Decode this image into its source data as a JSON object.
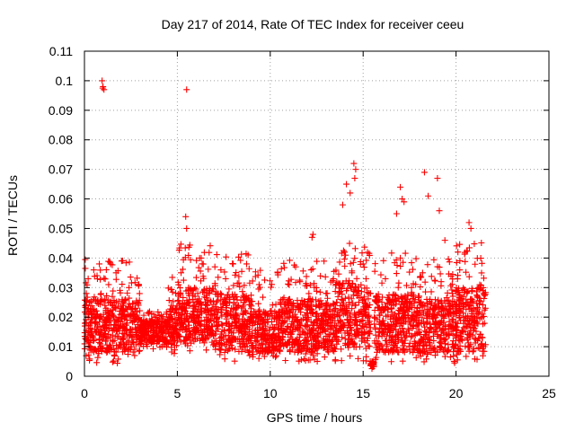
{
  "chart_data": {
    "type": "scatter",
    "title": "Day 217 of 2014, Rate Of TEC Index for receiver ceeu",
    "xlabel": "GPS time / hours",
    "ylabel": "ROTI / TECUs",
    "xlim": [
      0,
      25
    ],
    "ylim": [
      0,
      0.11
    ],
    "xticks": [
      0,
      5,
      10,
      15,
      20,
      25
    ],
    "xtick_labels": [
      "0",
      "5",
      "10",
      "15",
      "20",
      "25"
    ],
    "yticks": [
      0,
      0.01,
      0.02,
      0.03,
      0.04,
      0.05,
      0.06,
      0.07,
      0.08,
      0.09,
      0.1,
      0.11
    ],
    "ytick_labels": [
      "0",
      "0.01",
      "0.02",
      "0.03",
      "0.04",
      "0.05",
      "0.06",
      "0.07",
      "0.08",
      "0.09",
      "0.1",
      "0.11"
    ],
    "grid": true,
    "marker": "+",
    "color": "#ff0000",
    "series": [
      {
        "name": "ROTI",
        "x": [
          0.05,
          0.1,
          0.15,
          0.2,
          0.3,
          0.4,
          0.5,
          0.6,
          0.7,
          0.8,
          0.9,
          1.0,
          1.1,
          1.2,
          1.3,
          1.4,
          1.5,
          1.6,
          1.7,
          1.8,
          1.9,
          2.0,
          2.1,
          2.2,
          2.3,
          2.4,
          2.5,
          2.6,
          2.7,
          2.8,
          2.9,
          3.0,
          3.2,
          3.4,
          3.6,
          3.8,
          4.0,
          4.2,
          4.4,
          4.6,
          4.8,
          5.0,
          5.2,
          5.4,
          5.6,
          5.8,
          6.0,
          6.2,
          6.4,
          6.6,
          6.8,
          7.0,
          7.2,
          7.4,
          7.6,
          7.8,
          8.0,
          8.2,
          8.4,
          8.6,
          8.8,
          9.0,
          9.2,
          9.4,
          9.6,
          9.8,
          10.0,
          10.2,
          10.4,
          10.6,
          10.8,
          11.0,
          11.2,
          11.4,
          11.6,
          11.8,
          12.0,
          12.2,
          12.4,
          12.6,
          12.8,
          13.0,
          13.2,
          13.4,
          13.6,
          13.8,
          14.0,
          14.2,
          14.4,
          14.6,
          14.8,
          15.0,
          15.2,
          15.4,
          15.6,
          15.8,
          16.0,
          16.2,
          16.4,
          16.6,
          16.8,
          17.0,
          17.2,
          17.4,
          17.6,
          17.8,
          18.0,
          18.2,
          18.4,
          18.6,
          18.8,
          19.0,
          19.2,
          19.4,
          19.6,
          19.8,
          20.0,
          20.2,
          20.4,
          20.6,
          20.8,
          21.0,
          21.2,
          21.4,
          0.95,
          1.0,
          1.05,
          0.98,
          5.5,
          5.45,
          5.5,
          14.1,
          14.5,
          14.6,
          14.55,
          17.0,
          17.1,
          18.3,
          19.0,
          19.1,
          20.7,
          20.8,
          12.3,
          12.25,
          13.9,
          14.3,
          16.8,
          17.2,
          18.5,
          19.4
        ],
        "y": [
          0.018,
          0.028,
          0.012,
          0.033,
          0.022,
          0.015,
          0.036,
          0.009,
          0.021,
          0.038,
          0.014,
          0.017,
          0.024,
          0.008,
          0.031,
          0.019,
          0.027,
          0.012,
          0.035,
          0.016,
          0.022,
          0.039,
          0.011,
          0.026,
          0.018,
          0.03,
          0.014,
          0.021,
          0.007,
          0.025,
          0.019,
          0.013,
          0.016,
          0.018,
          0.012,
          0.02,
          0.014,
          0.017,
          0.011,
          0.022,
          0.015,
          0.018,
          0.035,
          0.012,
          0.028,
          0.021,
          0.016,
          0.04,
          0.013,
          0.024,
          0.019,
          0.011,
          0.027,
          0.015,
          0.033,
          0.012,
          0.038,
          0.018,
          0.01,
          0.025,
          0.014,
          0.02,
          0.012,
          0.031,
          0.016,
          0.009,
          0.022,
          0.014,
          0.035,
          0.018,
          0.011,
          0.026,
          0.015,
          0.02,
          0.032,
          0.012,
          0.017,
          0.036,
          0.013,
          0.024,
          0.019,
          0.028,
          0.011,
          0.033,
          0.021,
          0.016,
          0.042,
          0.018,
          0.03,
          0.024,
          0.015,
          0.038,
          0.012,
          0.028,
          0.02,
          0.009,
          0.016,
          0.033,
          0.012,
          0.025,
          0.018,
          0.04,
          0.014,
          0.022,
          0.03,
          0.011,
          0.019,
          0.035,
          0.015,
          0.026,
          0.012,
          0.021,
          0.032,
          0.017,
          0.009,
          0.028,
          0.014,
          0.036,
          0.02,
          0.013,
          0.024,
          0.018,
          0.03,
          0.011,
          0.1,
          0.098,
          0.097,
          0.0975,
          0.097,
          0.054,
          0.05,
          0.065,
          0.072,
          0.07,
          0.067,
          0.064,
          0.06,
          0.069,
          0.067,
          0.056,
          0.052,
          0.05,
          0.048,
          0.047,
          0.058,
          0.062,
          0.055,
          0.059,
          0.061,
          0.046
        ]
      }
    ],
    "bands": [
      {
        "x0": 0.0,
        "x1": 3.0,
        "lo": 0.004,
        "hi": 0.04,
        "dense_lo": 0.008,
        "dense_hi": 0.026
      },
      {
        "x0": 3.0,
        "x1": 4.5,
        "lo": 0.009,
        "hi": 0.022,
        "dense_lo": 0.011,
        "dense_hi": 0.019
      },
      {
        "x0": 4.5,
        "x1": 5.0,
        "lo": 0.007,
        "hi": 0.034,
        "dense_lo": 0.01,
        "dense_hi": 0.024
      },
      {
        "x0": 5.0,
        "x1": 7.0,
        "lo": 0.008,
        "hi": 0.045,
        "dense_lo": 0.012,
        "dense_hi": 0.03
      },
      {
        "x0": 7.0,
        "x1": 9.0,
        "lo": 0.005,
        "hi": 0.042,
        "dense_lo": 0.008,
        "dense_hi": 0.028
      },
      {
        "x0": 9.0,
        "x1": 10.5,
        "lo": 0.006,
        "hi": 0.036,
        "dense_lo": 0.008,
        "dense_hi": 0.022
      },
      {
        "x0": 10.5,
        "x1": 13.5,
        "lo": 0.005,
        "hi": 0.04,
        "dense_lo": 0.008,
        "dense_hi": 0.026
      },
      {
        "x0": 13.5,
        "x1": 15.4,
        "lo": 0.005,
        "hi": 0.045,
        "dense_lo": 0.01,
        "dense_hi": 0.032
      },
      {
        "x0": 15.4,
        "x1": 15.6,
        "lo": 0.002,
        "hi": 0.006,
        "dense_lo": 0.003,
        "dense_hi": 0.005
      },
      {
        "x0": 15.6,
        "x1": 18.0,
        "lo": 0.004,
        "hi": 0.042,
        "dense_lo": 0.008,
        "dense_hi": 0.028
      },
      {
        "x0": 18.0,
        "x1": 20.0,
        "lo": 0.004,
        "hi": 0.04,
        "dense_lo": 0.008,
        "dense_hi": 0.026
      },
      {
        "x0": 20.0,
        "x1": 21.6,
        "lo": 0.005,
        "hi": 0.046,
        "dense_lo": 0.008,
        "dense_hi": 0.03
      }
    ]
  }
}
